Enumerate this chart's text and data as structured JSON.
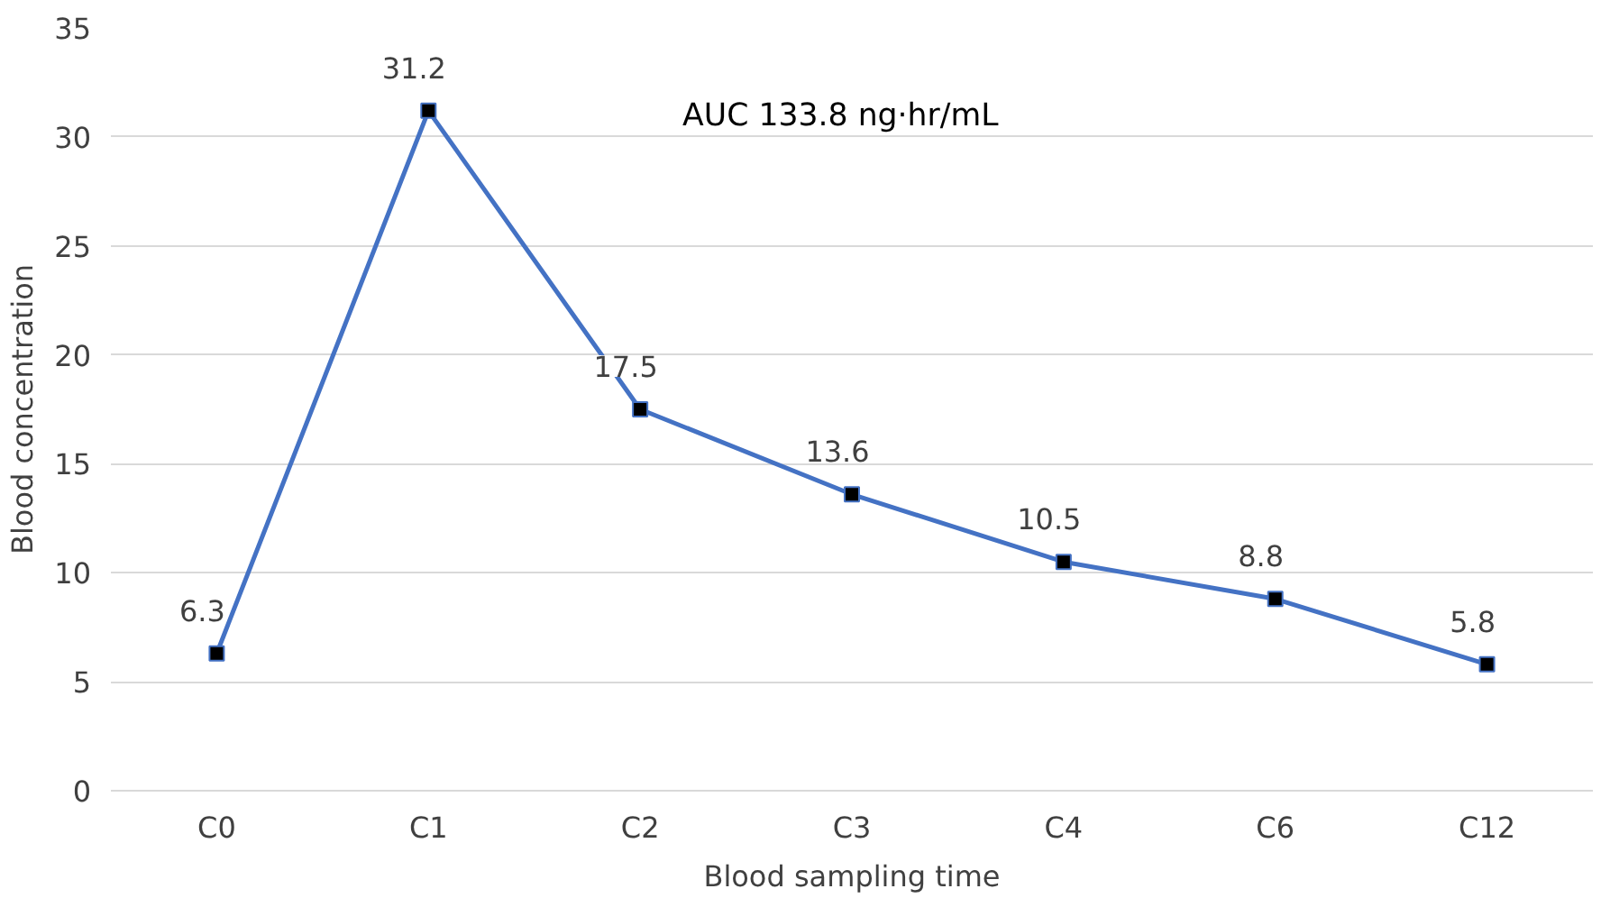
{
  "chart_data": {
    "type": "line",
    "categories": [
      "C0",
      "C1",
      "C2",
      "C3",
      "C4",
      "C6",
      "C12"
    ],
    "series": [
      {
        "color": "#4472c4",
        "values": [
          6.3,
          31.2,
          17.5,
          13.6,
          10.5,
          8.8,
          5.8
        ]
      }
    ],
    "xlabel": "Blood sampling time",
    "ylabel": "Blood concentration",
    "annotations": [
      "AUC 133.8 ng·hr/mL"
    ],
    "ylim": [
      0,
      35
    ],
    "yticks": [
      0,
      5,
      10,
      15,
      20,
      25,
      30,
      35
    ],
    "grid": "y",
    "marker": "square",
    "data_labels": true
  }
}
